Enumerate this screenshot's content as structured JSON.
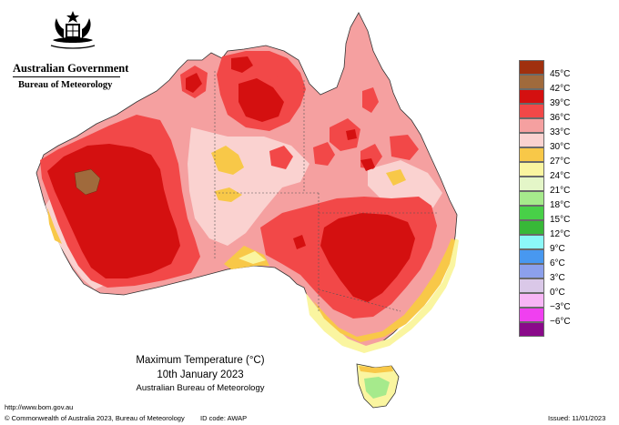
{
  "header": {
    "government": "Australian Government",
    "bureau": "Bureau of Meteorology",
    "crest": "coat-of-arms-icon"
  },
  "caption": {
    "title": "Maximum Temperature (°C)",
    "date": "10th January 2023",
    "source": "Australian Bureau of Meteorology"
  },
  "footer": {
    "url": "http://www.bom.gov.au",
    "copyright": "© Commonwealth of Australia 2023, Bureau of Meteorology",
    "id_code": "ID code: AWAP",
    "issued": "Issued: 11/01/2023"
  },
  "legend": [
    {
      "label": "45°C",
      "color": "#a0300e"
    },
    {
      "label": "42°C",
      "color": "#a06a3c"
    },
    {
      "label": "39°C",
      "color": "#d41010"
    },
    {
      "label": "36°C",
      "color": "#f24848"
    },
    {
      "label": "33°C",
      "color": "#f5a0a0"
    },
    {
      "label": "30°C",
      "color": "#fad2d0"
    },
    {
      "label": "27°C",
      "color": "#f8c848"
    },
    {
      "label": "24°C",
      "color": "#faf5a0"
    },
    {
      "label": "21°C",
      "color": "#e4f6c8"
    },
    {
      "label": "18°C",
      "color": "#a6ea8c"
    },
    {
      "label": "15°C",
      "color": "#48d048"
    },
    {
      "label": "12°C",
      "color": "#38b838"
    },
    {
      "label": "9°C",
      "color": "#8cf8f8"
    },
    {
      "label": "6°C",
      "color": "#4898f0"
    },
    {
      "label": "3°C",
      "color": "#8ca0ec"
    },
    {
      "label": "0°C",
      "color": "#dac8e8"
    },
    {
      "label": "−3°C",
      "color": "#f8b6f6"
    },
    {
      "label": "−6°C",
      "color": "#f040f0"
    },
    {
      "label": "",
      "color": "#8a0a8a"
    }
  ]
}
